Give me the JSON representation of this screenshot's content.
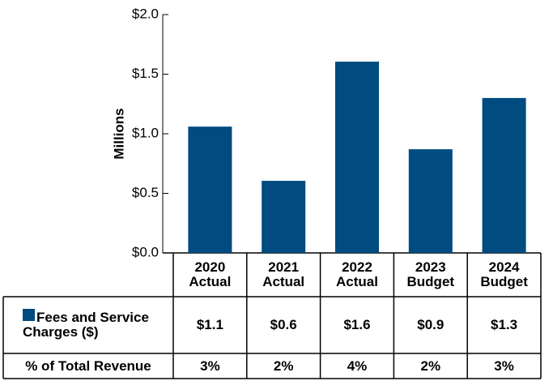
{
  "chart_data": {
    "type": "bar",
    "y_label": "Millions",
    "categories": [
      "2020 Actual",
      "2021 Actual",
      "2022 Actual",
      "2023 Budget",
      "2024 Budget"
    ],
    "series": [
      {
        "name": "Fees and Service Charges ($)",
        "color": "#004b7f",
        "values": [
          1.06,
          0.605,
          1.605,
          0.87,
          1.3
        ],
        "value_labels": [
          "$1.1",
          "$0.6",
          "$1.6",
          "$0.9",
          "$1.3"
        ]
      }
    ],
    "revenue_share": {
      "name": "% of Total Revenue",
      "values": [
        3,
        2,
        4,
        2,
        3
      ],
      "value_labels": [
        "3%",
        "2%",
        "4%",
        "2%",
        "3%"
      ]
    },
    "ylim": [
      0,
      2
    ],
    "yticks": [
      {
        "value": 0,
        "label": "$0.0"
      },
      {
        "value": 0.5,
        "label": "$0.5"
      },
      {
        "value": 1,
        "label": "$1.0"
      },
      {
        "value": 1.5,
        "label": "$1.5"
      },
      {
        "value": 2,
        "label": "$2.0"
      }
    ]
  }
}
